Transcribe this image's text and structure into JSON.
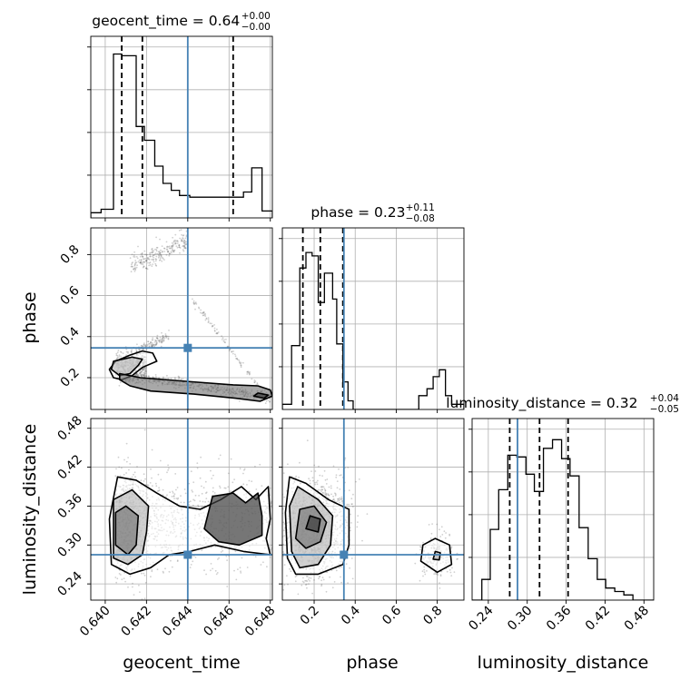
{
  "chart_data": {
    "type": "corner",
    "parameters": [
      "geocent_time",
      "phase",
      "luminosity_distance"
    ],
    "axis_labels": [
      "geocent_time",
      "phase",
      "luminosity_distance"
    ],
    "truths": {
      "geocent_time": 0.644,
      "phase": 0.345,
      "luminosity_distance": 0.285
    },
    "colors": {
      "truth": "#4682b4",
      "hist": "#000000",
      "grid": "#b0b0b0",
      "points": "#555555"
    },
    "grid": true,
    "titles": [
      {
        "param": "geocent_time",
        "main": "geocent_time = 0.64",
        "sup": "+0.00",
        "sub": "−0.00"
      },
      {
        "param": "phase",
        "main": "phase = 0.23",
        "sup": "+0.11",
        "sub": "−0.08"
      },
      {
        "param": "luminosity_distance",
        "main": "luminosity_distance = 0.32",
        "sup": "+0.04",
        "sub": "−0.05"
      }
    ],
    "ticks": {
      "geocent_time": [
        "0.640",
        "0.642",
        "0.644",
        "0.646",
        "0.648"
      ],
      "phase": [
        "0.2",
        "0.4",
        "0.6",
        "0.8"
      ],
      "luminosity_distance": [
        "0.24",
        "0.30",
        "0.36",
        "0.42",
        "0.48"
      ]
    },
    "ranges": {
      "geocent_time": [
        0.6393,
        0.6481
      ],
      "phase": [
        0.045,
        0.93
      ],
      "luminosity_distance": [
        0.215,
        0.495
      ]
    },
    "quantiles": {
      "geocent_time": [
        0.6408,
        0.6418,
        0.6462
      ],
      "phase": [
        0.145,
        0.23,
        0.34
      ],
      "luminosity_distance": [
        0.273,
        0.319,
        0.363
      ]
    },
    "histograms": {
      "geocent_time": {
        "edges": [
          0.6393,
          0.6398,
          0.6404,
          0.6408,
          0.6415,
          0.6419,
          0.6424,
          0.6428,
          0.6432,
          0.6436,
          0.6441,
          0.6454,
          0.6467,
          0.6471,
          0.6476,
          0.6481
        ],
        "counts": [
          0.03,
          0.05,
          0.95,
          0.94,
          0.53,
          0.45,
          0.3,
          0.2,
          0.16,
          0.13,
          0.12,
          0.12,
          0.15,
          0.29,
          0.04
        ]
      },
      "phase": {
        "edges": [
          0.045,
          0.09,
          0.13,
          0.16,
          0.19,
          0.22,
          0.25,
          0.29,
          0.31,
          0.34,
          0.365,
          0.39,
          0.43,
          0.71,
          0.75,
          0.78,
          0.81,
          0.84,
          0.87,
          0.93
        ],
        "counts": [
          0.03,
          0.37,
          0.82,
          0.91,
          0.89,
          0.62,
          0.79,
          0.64,
          0.38,
          0.16,
          0.05,
          0.0,
          0.0,
          0.08,
          0.12,
          0.19,
          0.23,
          0.08,
          0.03
        ]
      },
      "luminosity_distance": {
        "edges": [
          0.215,
          0.23,
          0.243,
          0.256,
          0.27,
          0.284,
          0.298,
          0.311,
          0.325,
          0.339,
          0.353,
          0.366,
          0.38,
          0.394,
          0.408,
          0.421,
          0.435,
          0.449,
          0.463,
          0.495
        ],
        "counts": [
          0.0,
          0.12,
          0.41,
          0.64,
          0.84,
          0.83,
          0.73,
          0.63,
          0.88,
          0.93,
          0.82,
          0.72,
          0.42,
          0.24,
          0.12,
          0.07,
          0.05,
          0.03,
          0.0
        ]
      }
    },
    "contours_2d": {
      "geocent_time_vs_phase": [
        [
          [
            0.6405,
            0.28
          ],
          [
            0.6412,
            0.31
          ],
          [
            0.6418,
            0.33
          ],
          [
            0.6423,
            0.32
          ],
          [
            0.6425,
            0.28
          ],
          [
            0.6418,
            0.25
          ],
          [
            0.6413,
            0.21
          ],
          [
            0.6408,
            0.19
          ],
          [
            0.6404,
            0.2
          ],
          [
            0.6402,
            0.24
          ]
        ],
        [
          [
            0.6404,
            0.28
          ],
          [
            0.6413,
            0.3
          ],
          [
            0.6418,
            0.29
          ],
          [
            0.6416,
            0.26
          ],
          [
            0.6412,
            0.22
          ],
          [
            0.6407,
            0.21
          ],
          [
            0.6403,
            0.24
          ]
        ],
        [
          [
            0.6407,
            0.22
          ],
          [
            0.6417,
            0.2
          ],
          [
            0.6442,
            0.18
          ],
          [
            0.6462,
            0.165
          ],
          [
            0.6474,
            0.16
          ],
          [
            0.648,
            0.14
          ],
          [
            0.6481,
            0.11
          ],
          [
            0.6475,
            0.085
          ],
          [
            0.6463,
            0.1
          ],
          [
            0.6443,
            0.12
          ],
          [
            0.6422,
            0.135
          ],
          [
            0.6412,
            0.16
          ],
          [
            0.6407,
            0.19
          ]
        ],
        [
          [
            0.6474,
            0.125
          ],
          [
            0.6479,
            0.115
          ],
          [
            0.6477,
            0.1
          ],
          [
            0.6472,
            0.11
          ]
        ]
      ],
      "geocent_time_vs_luminosity_distance": [
        [
          [
            0.6403,
            0.27
          ],
          [
            0.6402,
            0.34
          ],
          [
            0.6406,
            0.405
          ],
          [
            0.6415,
            0.4
          ],
          [
            0.6425,
            0.38
          ],
          [
            0.6436,
            0.36
          ],
          [
            0.6446,
            0.355
          ],
          [
            0.6456,
            0.37
          ],
          [
            0.6466,
            0.39
          ],
          [
            0.6473,
            0.37
          ],
          [
            0.6479,
            0.39
          ],
          [
            0.648,
            0.34
          ],
          [
            0.6478,
            0.31
          ],
          [
            0.648,
            0.285
          ],
          [
            0.6467,
            0.29
          ],
          [
            0.6453,
            0.3
          ],
          [
            0.6441,
            0.29
          ],
          [
            0.6431,
            0.285
          ],
          [
            0.6422,
            0.265
          ],
          [
            0.6412,
            0.255
          ]
        ],
        [
          [
            0.6404,
            0.28
          ],
          [
            0.6404,
            0.37
          ],
          [
            0.6413,
            0.385
          ],
          [
            0.6421,
            0.36
          ],
          [
            0.642,
            0.32
          ],
          [
            0.6418,
            0.285
          ],
          [
            0.6411,
            0.27
          ]
        ],
        [
          [
            0.6405,
            0.3
          ],
          [
            0.6405,
            0.35
          ],
          [
            0.641,
            0.36
          ],
          [
            0.6416,
            0.345
          ],
          [
            0.6415,
            0.3
          ],
          [
            0.6411,
            0.285
          ]
        ],
        [
          [
            0.6448,
            0.325
          ],
          [
            0.6452,
            0.375
          ],
          [
            0.6462,
            0.38
          ],
          [
            0.6468,
            0.365
          ],
          [
            0.6474,
            0.38
          ],
          [
            0.6476,
            0.345
          ],
          [
            0.6476,
            0.315
          ],
          [
            0.6465,
            0.3
          ],
          [
            0.6455,
            0.305
          ]
        ]
      ],
      "phase_vs_luminosity_distance": [
        [
          [
            0.07,
            0.28
          ],
          [
            0.06,
            0.35
          ],
          [
            0.08,
            0.405
          ],
          [
            0.16,
            0.395
          ],
          [
            0.27,
            0.37
          ],
          [
            0.37,
            0.355
          ],
          [
            0.37,
            0.3
          ],
          [
            0.34,
            0.27
          ],
          [
            0.22,
            0.255
          ],
          [
            0.11,
            0.255
          ]
        ],
        [
          [
            0.09,
            0.29
          ],
          [
            0.08,
            0.36
          ],
          [
            0.12,
            0.39
          ],
          [
            0.22,
            0.37
          ],
          [
            0.29,
            0.345
          ],
          [
            0.28,
            0.3
          ],
          [
            0.22,
            0.27
          ],
          [
            0.13,
            0.265
          ]
        ],
        [
          [
            0.11,
            0.31
          ],
          [
            0.13,
            0.355
          ],
          [
            0.2,
            0.36
          ],
          [
            0.26,
            0.335
          ],
          [
            0.23,
            0.305
          ],
          [
            0.16,
            0.295
          ]
        ],
        [
          [
            0.16,
            0.325
          ],
          [
            0.18,
            0.345
          ],
          [
            0.23,
            0.34
          ],
          [
            0.22,
            0.32
          ]
        ],
        [
          [
            0.72,
            0.275
          ],
          [
            0.73,
            0.3
          ],
          [
            0.79,
            0.31
          ],
          [
            0.86,
            0.3
          ],
          [
            0.87,
            0.27
          ],
          [
            0.8,
            0.258
          ]
        ],
        [
          [
            0.78,
            0.278
          ],
          [
            0.79,
            0.29
          ],
          [
            0.815,
            0.288
          ],
          [
            0.81,
            0.277
          ]
        ]
      ]
    }
  }
}
